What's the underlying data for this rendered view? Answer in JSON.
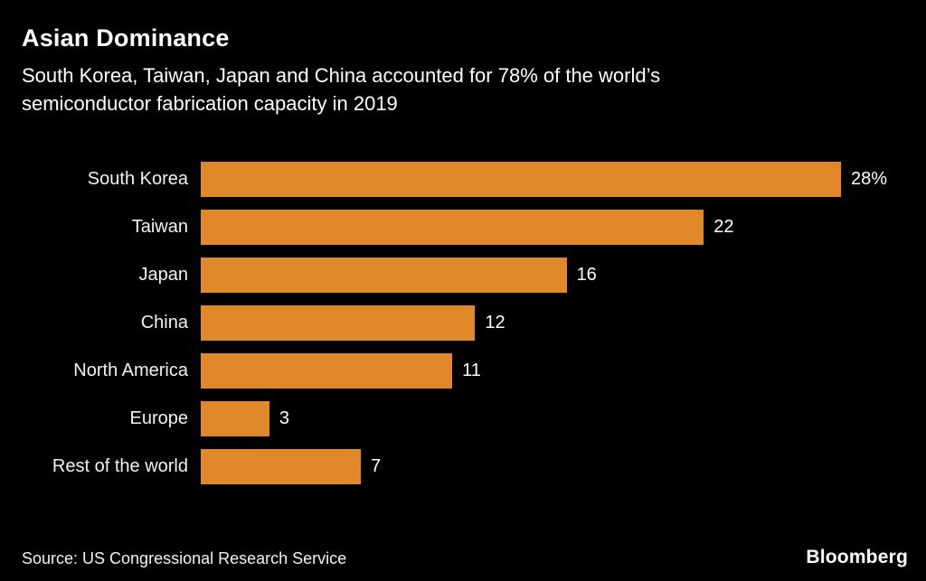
{
  "chart_data": {
    "type": "bar",
    "orientation": "horizontal",
    "title": "Asian Dominance",
    "subtitle_lines": [
      "South Korea, Taiwan, Japan and China accounted for 78% of the world’s",
      "semiconductor fabrication capacity in 2019"
    ],
    "categories": [
      "South Korea",
      "Taiwan",
      "Japan",
      "China",
      "North America",
      "Europe",
      "Rest of the world"
    ],
    "values": [
      28,
      22,
      16,
      12,
      11,
      3,
      7
    ],
    "value_labels": [
      "28%",
      "22",
      "16",
      "12",
      "11",
      "3",
      "7"
    ],
    "xlim": [
      0,
      28
    ],
    "unit": "%",
    "bar_color": "#E1892A",
    "background_color": "#000000",
    "text_color": "#FFFFFF",
    "grid": false,
    "legend": false,
    "source": "Source: US Congressional Research Service",
    "brand": "Bloomberg"
  }
}
